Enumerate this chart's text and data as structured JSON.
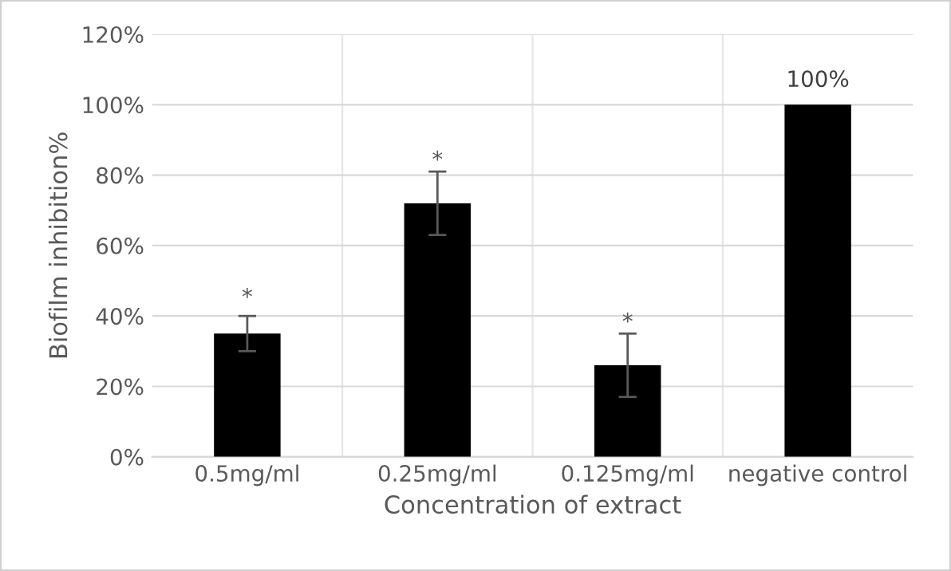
{
  "chart_data": {
    "type": "bar",
    "xlabel": "Concentration of extract",
    "ylabel": "Biofilm inhibition%",
    "categories": [
      "0.5mg/ml",
      "0.25mg/ml",
      "0.125mg/ml",
      "negative control"
    ],
    "values": [
      35,
      72,
      26,
      100
    ],
    "color": "#000000",
    "errors": [
      5,
      9,
      9,
      null
    ],
    "value_labels": [
      null,
      null,
      null,
      "100%"
    ],
    "annotations": [
      {
        "text": "*",
        "x": "0.5mg/ml",
        "y": 42
      },
      {
        "text": "*",
        "x": "0.25mg/ml",
        "y": 81
      },
      {
        "text": "*",
        "x": "0.125mg/ml",
        "y": 35
      }
    ],
    "ylim": [
      0,
      120
    ],
    "yticks": [
      {
        "value": 0,
        "label": "0%"
      },
      {
        "value": 20,
        "label": "20%"
      },
      {
        "value": 40,
        "label": "40%"
      },
      {
        "value": 60,
        "label": "60%"
      },
      {
        "value": 80,
        "label": "80%"
      },
      {
        "value": 100,
        "label": "100%"
      },
      {
        "value": 120,
        "label": "120%"
      }
    ],
    "grid": true
  }
}
